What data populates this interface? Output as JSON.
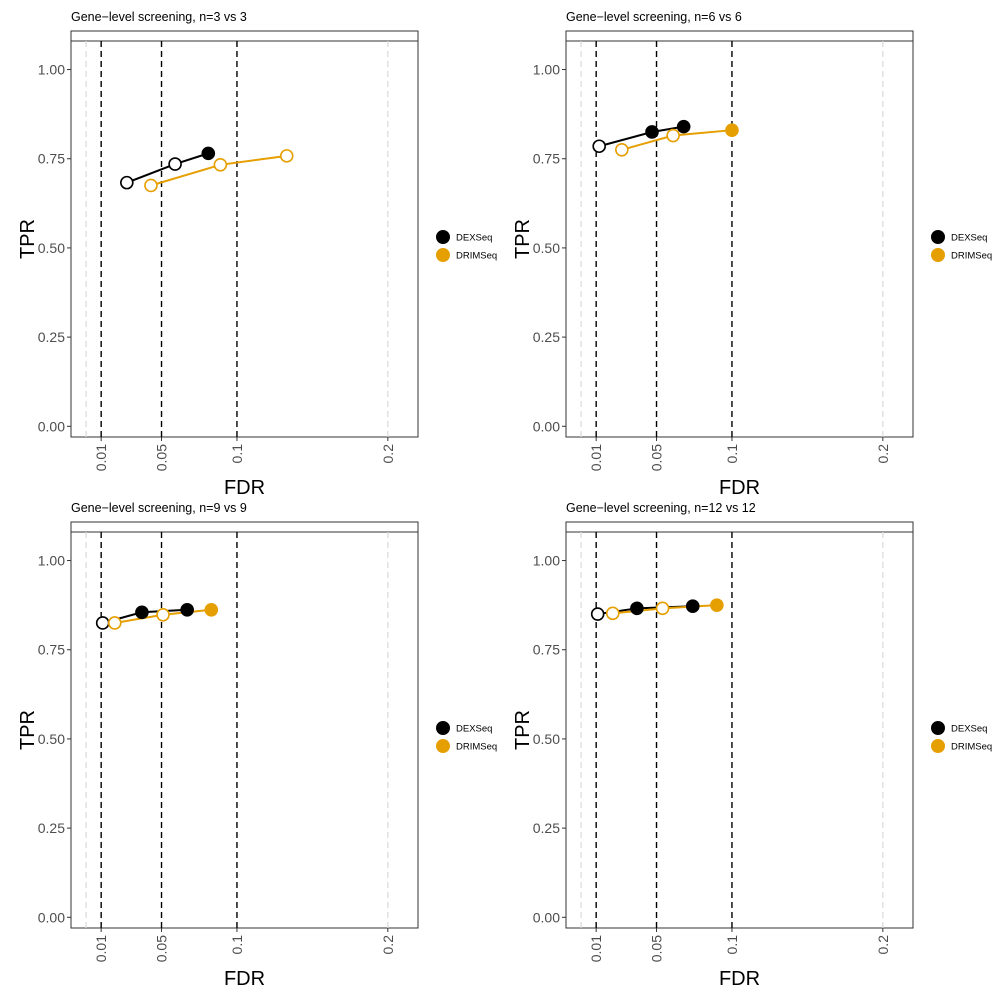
{
  "figure": {
    "xlabel": "FDR",
    "ylabel": "TPR",
    "x_ticks": [
      {
        "value": 0.01,
        "label": "0.01"
      },
      {
        "value": 0.05,
        "label": "0.05"
      },
      {
        "value": 0.1,
        "label": "0.1"
      },
      {
        "value": 0.2,
        "label": "0.2"
      }
    ],
    "y_ticks": [
      {
        "value": 0.0,
        "label": "0.00"
      },
      {
        "value": 0.25,
        "label": "0.25"
      },
      {
        "value": 0.5,
        "label": "0.50"
      },
      {
        "value": 0.75,
        "label": "0.75"
      },
      {
        "value": 1.0,
        "label": "1.00"
      }
    ],
    "colors": {
      "DEXSeq": "#000000",
      "DRIMSeq": "#E69F00"
    }
  },
  "chart_data": [
    {
      "type": "line",
      "title": "Gene−level screening, n=3 vs 3",
      "xlabel": "FDR",
      "ylabel": "TPR",
      "xlim": [
        -0.01,
        0.22
      ],
      "ylim": [
        -0.03,
        1.08
      ],
      "grid": false,
      "legend_position": "right",
      "reference_lines": [
        0.01,
        0.05,
        0.1
      ],
      "series": [
        {
          "name": "DEXSeq",
          "color": "#000000",
          "points": [
            {
              "fdr": 0.027,
              "tpr": 0.683,
              "threshold": 0.01,
              "significant": false
            },
            {
              "fdr": 0.059,
              "tpr": 0.735,
              "threshold": 0.05,
              "significant": false
            },
            {
              "fdr": 0.081,
              "tpr": 0.765,
              "threshold": 0.1,
              "significant": true
            }
          ]
        },
        {
          "name": "DRIMSeq",
          "color": "#E69F00",
          "points": [
            {
              "fdr": 0.043,
              "tpr": 0.675,
              "threshold": 0.01,
              "significant": false
            },
            {
              "fdr": 0.089,
              "tpr": 0.733,
              "threshold": 0.05,
              "significant": false
            },
            {
              "fdr": 0.133,
              "tpr": 0.758,
              "threshold": 0.1,
              "significant": false
            }
          ]
        }
      ]
    },
    {
      "type": "line",
      "title": "Gene−level screening, n=6 vs 6",
      "xlabel": "FDR",
      "ylabel": "TPR",
      "xlim": [
        -0.01,
        0.22
      ],
      "ylim": [
        -0.03,
        1.08
      ],
      "grid": false,
      "legend_position": "right",
      "reference_lines": [
        0.01,
        0.05,
        0.1
      ],
      "series": [
        {
          "name": "DEXSeq",
          "color": "#000000",
          "points": [
            {
              "fdr": 0.012,
              "tpr": 0.785,
              "threshold": 0.01,
              "significant": false
            },
            {
              "fdr": 0.047,
              "tpr": 0.825,
              "threshold": 0.05,
              "significant": true
            },
            {
              "fdr": 0.068,
              "tpr": 0.84,
              "threshold": 0.1,
              "significant": true
            }
          ]
        },
        {
          "name": "DRIMSeq",
          "color": "#E69F00",
          "points": [
            {
              "fdr": 0.027,
              "tpr": 0.775,
              "threshold": 0.01,
              "significant": false
            },
            {
              "fdr": 0.061,
              "tpr": 0.815,
              "threshold": 0.05,
              "significant": false
            },
            {
              "fdr": 0.1,
              "tpr": 0.83,
              "threshold": 0.1,
              "significant": true
            }
          ]
        }
      ]
    },
    {
      "type": "line",
      "title": "Gene−level screening, n=9 vs 9",
      "xlabel": "FDR",
      "ylabel": "TPR",
      "xlim": [
        -0.01,
        0.22
      ],
      "ylim": [
        -0.03,
        1.08
      ],
      "grid": false,
      "legend_position": "right",
      "reference_lines": [
        0.01,
        0.05,
        0.1
      ],
      "series": [
        {
          "name": "DEXSeq",
          "color": "#000000",
          "points": [
            {
              "fdr": 0.011,
              "tpr": 0.825,
              "threshold": 0.01,
              "significant": false
            },
            {
              "fdr": 0.037,
              "tpr": 0.855,
              "threshold": 0.05,
              "significant": true
            },
            {
              "fdr": 0.067,
              "tpr": 0.862,
              "threshold": 0.1,
              "significant": true
            }
          ]
        },
        {
          "name": "DRIMSeq",
          "color": "#E69F00",
          "points": [
            {
              "fdr": 0.019,
              "tpr": 0.825,
              "threshold": 0.01,
              "significant": false
            },
            {
              "fdr": 0.051,
              "tpr": 0.848,
              "threshold": 0.05,
              "significant": false
            },
            {
              "fdr": 0.083,
              "tpr": 0.862,
              "threshold": 0.1,
              "significant": true
            }
          ]
        }
      ]
    },
    {
      "type": "line",
      "title": "Gene−level screening, n=12 vs 12",
      "xlabel": "FDR",
      "ylabel": "TPR",
      "xlim": [
        -0.01,
        0.22
      ],
      "ylim": [
        -0.03,
        1.08
      ],
      "grid": false,
      "legend_position": "right",
      "reference_lines": [
        0.01,
        0.05,
        0.1
      ],
      "series": [
        {
          "name": "DEXSeq",
          "color": "#000000",
          "points": [
            {
              "fdr": 0.011,
              "tpr": 0.85,
              "threshold": 0.01,
              "significant": false
            },
            {
              "fdr": 0.037,
              "tpr": 0.866,
              "threshold": 0.05,
              "significant": true
            },
            {
              "fdr": 0.074,
              "tpr": 0.872,
              "threshold": 0.1,
              "significant": true
            }
          ]
        },
        {
          "name": "DRIMSeq",
          "color": "#E69F00",
          "points": [
            {
              "fdr": 0.021,
              "tpr": 0.852,
              "threshold": 0.01,
              "significant": false
            },
            {
              "fdr": 0.054,
              "tpr": 0.866,
              "threshold": 0.05,
              "significant": false
            },
            {
              "fdr": 0.09,
              "tpr": 0.875,
              "threshold": 0.1,
              "significant": true
            }
          ]
        }
      ]
    }
  ]
}
